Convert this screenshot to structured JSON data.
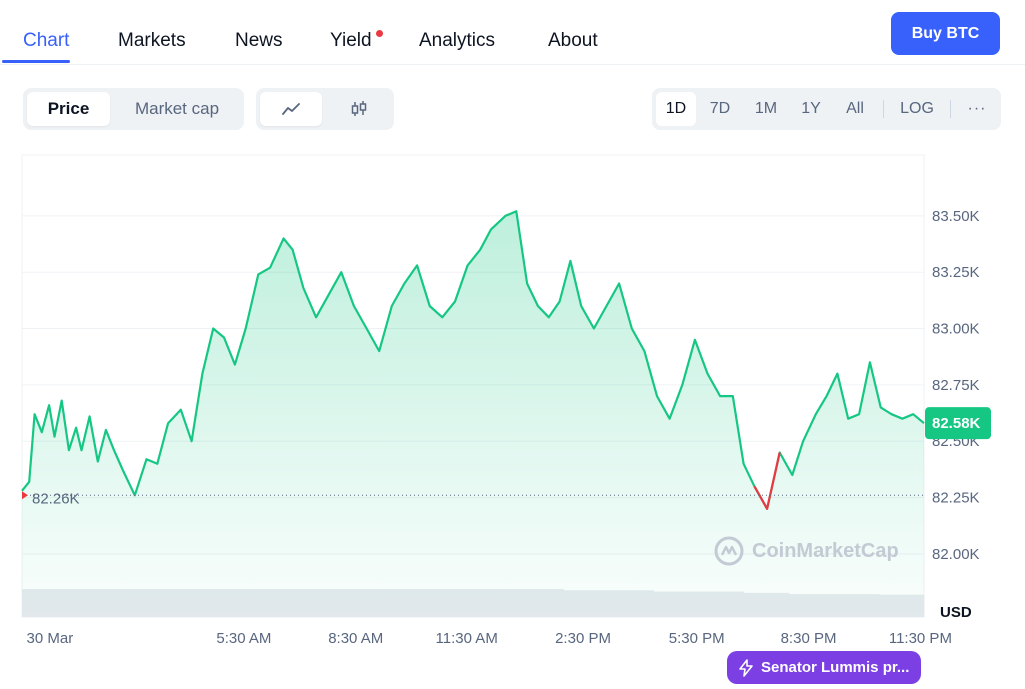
{
  "nav": {
    "tabs": [
      "Chart",
      "Markets",
      "News",
      "Yield",
      "Analytics",
      "About"
    ],
    "active": "Chart",
    "buy_label": "Buy BTC"
  },
  "toolbar": {
    "price_label": "Price",
    "marketcap_label": "Market cap",
    "line_icon": "line-chart-icon",
    "candle_icon": "candlestick-icon",
    "ranges": [
      "1D",
      "7D",
      "1M",
      "1Y",
      "All"
    ],
    "active_range": "1D",
    "log_label": "LOG",
    "more_label": "···"
  },
  "colors": {
    "accent": "#3861fb",
    "up": "#16c784",
    "down": "#ea3943",
    "news": "#7b3fe4"
  },
  "watermark": "CoinMarketCap",
  "news_pill": "Senator Lummis pr...",
  "chart_data": {
    "type": "area",
    "ylim": [
      81.72,
      83.77
    ],
    "yunit": "USD",
    "yticks": [
      {
        "value": 83.5,
        "label": "83.50K"
      },
      {
        "value": 83.25,
        "label": "83.25K"
      },
      {
        "value": 83.0,
        "label": "83.00K"
      },
      {
        "value": 82.75,
        "label": "82.75K"
      },
      {
        "value": 82.5,
        "label": "82.50K"
      },
      {
        "value": 82.25,
        "label": "82.25K"
      },
      {
        "value": 82.0,
        "label": "82.00K"
      }
    ],
    "xticks": [
      {
        "pos": 0.005,
        "label": "30 Mar"
      },
      {
        "pos": 0.246,
        "label": "5:30 AM"
      },
      {
        "pos": 0.37,
        "label": "8:30 AM"
      },
      {
        "pos": 0.493,
        "label": "11:30 AM"
      },
      {
        "pos": 0.622,
        "label": "2:30 PM"
      },
      {
        "pos": 0.748,
        "label": "5:30 PM"
      },
      {
        "pos": 0.872,
        "label": "8:30 PM"
      },
      {
        "pos": 0.996,
        "label": "11:30 PM"
      }
    ],
    "open_value": 82.26,
    "open_label": "82.26K",
    "current_value": 82.58,
    "current_label": "82.58K",
    "series": [
      {
        "values": [
          [
            0.0,
            82.28
          ],
          [
            0.008,
            82.32
          ],
          [
            0.014,
            82.62
          ],
          [
            0.022,
            82.54
          ],
          [
            0.03,
            82.66
          ],
          [
            0.036,
            82.52
          ],
          [
            0.044,
            82.68
          ],
          [
            0.052,
            82.46
          ],
          [
            0.06,
            82.56
          ],
          [
            0.066,
            82.46
          ],
          [
            0.075,
            82.61
          ],
          [
            0.084,
            82.41
          ],
          [
            0.093,
            82.55
          ],
          [
            0.102,
            82.46
          ],
          [
            0.112,
            82.37
          ],
          [
            0.125,
            82.26
          ],
          [
            0.138,
            82.42
          ],
          [
            0.15,
            82.4
          ],
          [
            0.162,
            82.58
          ],
          [
            0.176,
            82.64
          ],
          [
            0.188,
            82.5
          ],
          [
            0.2,
            82.8
          ],
          [
            0.212,
            83.0
          ],
          [
            0.224,
            82.96
          ],
          [
            0.236,
            82.84
          ],
          [
            0.248,
            83.0
          ],
          [
            0.262,
            83.24
          ],
          [
            0.275,
            83.27
          ],
          [
            0.29,
            83.4
          ],
          [
            0.3,
            83.35
          ],
          [
            0.312,
            83.18
          ],
          [
            0.326,
            83.05
          ],
          [
            0.34,
            83.15
          ],
          [
            0.354,
            83.25
          ],
          [
            0.368,
            83.1
          ],
          [
            0.382,
            83.0
          ],
          [
            0.396,
            82.9
          ],
          [
            0.41,
            83.1
          ],
          [
            0.424,
            83.2
          ],
          [
            0.438,
            83.28
          ],
          [
            0.452,
            83.1
          ],
          [
            0.466,
            83.05
          ],
          [
            0.48,
            83.12
          ],
          [
            0.494,
            83.28
          ],
          [
            0.508,
            83.35
          ],
          [
            0.52,
            83.44
          ],
          [
            0.536,
            83.5
          ],
          [
            0.548,
            83.52
          ],
          [
            0.56,
            83.2
          ],
          [
            0.572,
            83.1
          ],
          [
            0.584,
            83.05
          ],
          [
            0.596,
            83.12
          ],
          [
            0.608,
            83.3
          ],
          [
            0.62,
            83.1
          ],
          [
            0.634,
            83.0
          ],
          [
            0.648,
            83.1
          ],
          [
            0.662,
            83.2
          ],
          [
            0.676,
            83.0
          ],
          [
            0.69,
            82.9
          ],
          [
            0.704,
            82.7
          ],
          [
            0.718,
            82.6
          ],
          [
            0.732,
            82.75
          ],
          [
            0.746,
            82.95
          ],
          [
            0.76,
            82.8
          ],
          [
            0.774,
            82.7
          ],
          [
            0.788,
            82.7
          ],
          [
            0.8,
            82.4
          ],
          [
            0.812,
            82.3
          ],
          [
            0.826,
            82.2
          ],
          [
            0.84,
            82.45
          ],
          [
            0.854,
            82.35
          ],
          [
            0.866,
            82.5
          ],
          [
            0.88,
            82.62
          ],
          [
            0.892,
            82.7
          ],
          [
            0.904,
            82.8
          ],
          [
            0.916,
            82.6
          ],
          [
            0.928,
            82.62
          ],
          [
            0.94,
            82.85
          ],
          [
            0.952,
            82.65
          ],
          [
            0.964,
            82.62
          ],
          [
            0.976,
            82.6
          ],
          [
            0.988,
            82.62
          ],
          [
            1.0,
            82.58
          ]
        ]
      }
    ],
    "volume": [
      0.11,
      0.11,
      0.11,
      0.11,
      0.11,
      0.11,
      0.11,
      0.11,
      0.11,
      0.11,
      0.11,
      0.11,
      0.105,
      0.105,
      0.1,
      0.1,
      0.095,
      0.09,
      0.09,
      0.088
    ]
  }
}
